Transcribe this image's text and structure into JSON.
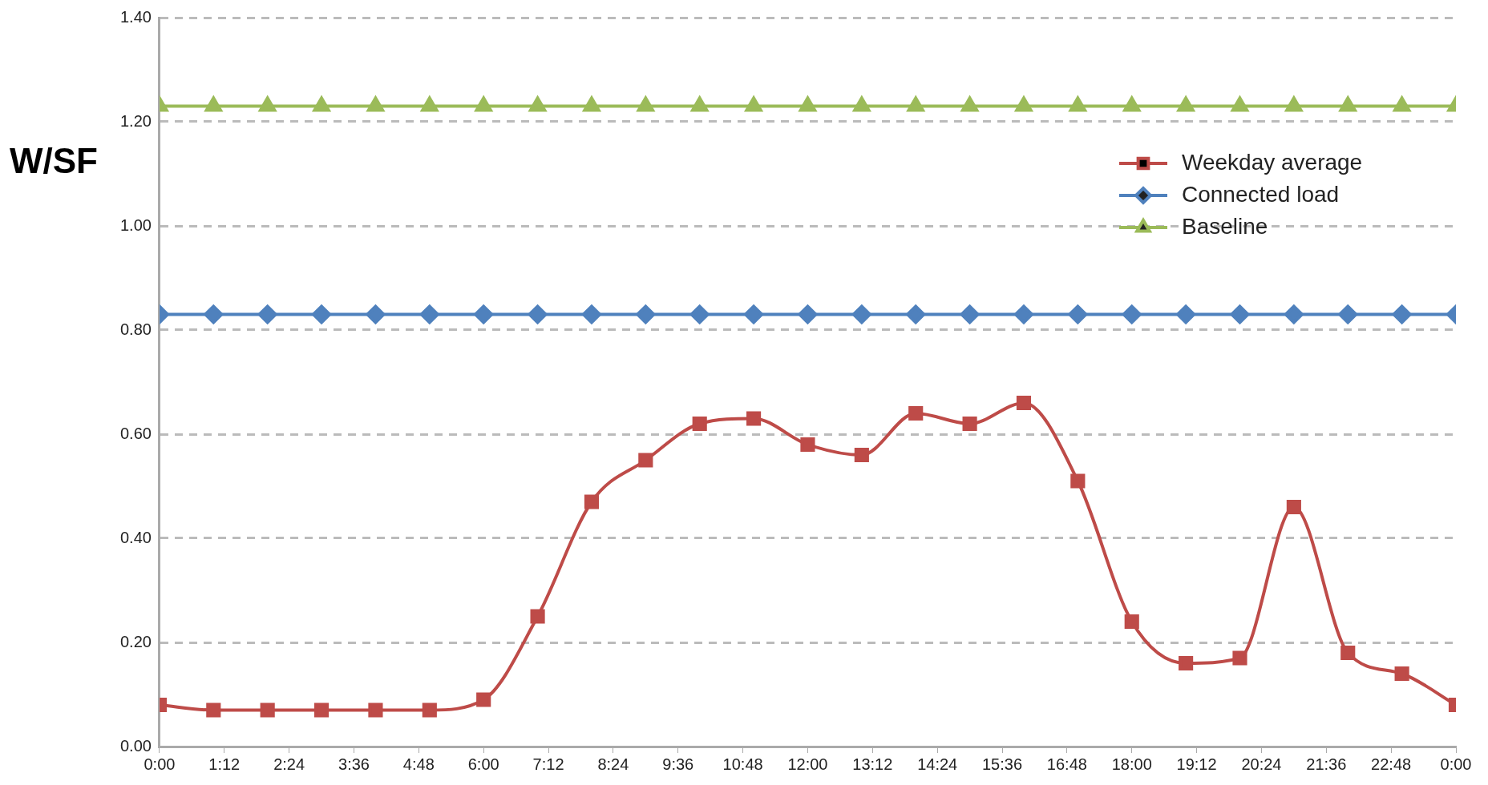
{
  "chart_data": {
    "type": "line",
    "ylabel": "W/SF",
    "x": [
      0,
      1,
      2,
      3,
      4,
      5,
      6,
      7,
      8,
      9,
      10,
      11,
      12,
      13,
      14,
      15,
      16,
      17,
      18,
      19,
      20,
      21,
      22,
      23,
      24
    ],
    "xlim": [
      0,
      24
    ],
    "xticks": [
      {
        "value": 0,
        "label": "0:00"
      },
      {
        "value": 1.2,
        "label": "1:12"
      },
      {
        "value": 2.4,
        "label": "2:24"
      },
      {
        "value": 3.6,
        "label": "3:36"
      },
      {
        "value": 4.8,
        "label": "4:48"
      },
      {
        "value": 6,
        "label": "6:00"
      },
      {
        "value": 7.2,
        "label": "7:12"
      },
      {
        "value": 8.4,
        "label": "8:24"
      },
      {
        "value": 9.6,
        "label": "9:36"
      },
      {
        "value": 10.8,
        "label": "10:48"
      },
      {
        "value": 12,
        "label": "12:00"
      },
      {
        "value": 13.2,
        "label": "13:12"
      },
      {
        "value": 14.4,
        "label": "14:24"
      },
      {
        "value": 15.6,
        "label": "15:36"
      },
      {
        "value": 16.8,
        "label": "16:48"
      },
      {
        "value": 18,
        "label": "18:00"
      },
      {
        "value": 19.2,
        "label": "19:12"
      },
      {
        "value": 20.4,
        "label": "20:24"
      },
      {
        "value": 21.6,
        "label": "21:36"
      },
      {
        "value": 22.8,
        "label": "22:48"
      },
      {
        "value": 24,
        "label": "0:00"
      }
    ],
    "series": [
      {
        "name": "Weekday average",
        "color": "#be4b48",
        "marker": "square",
        "values": [
          0.08,
          0.07,
          0.07,
          0.07,
          0.07,
          0.07,
          0.09,
          0.25,
          0.47,
          0.55,
          0.62,
          0.63,
          0.58,
          0.56,
          0.64,
          0.62,
          0.66,
          0.51,
          0.24,
          0.16,
          0.17,
          0.46,
          0.18,
          0.14,
          0.08
        ]
      },
      {
        "name": "Connected load",
        "color": "#4f81bd",
        "marker": "diamond",
        "values": [
          0.83,
          0.83,
          0.83,
          0.83,
          0.83,
          0.83,
          0.83,
          0.83,
          0.83,
          0.83,
          0.83,
          0.83,
          0.83,
          0.83,
          0.83,
          0.83,
          0.83,
          0.83,
          0.83,
          0.83,
          0.83,
          0.83,
          0.83,
          0.83,
          0.83
        ]
      },
      {
        "name": "Baseline",
        "color": "#9bbb59",
        "marker": "triangle",
        "values": [
          1.23,
          1.23,
          1.23,
          1.23,
          1.23,
          1.23,
          1.23,
          1.23,
          1.23,
          1.23,
          1.23,
          1.23,
          1.23,
          1.23,
          1.23,
          1.23,
          1.23,
          1.23,
          1.23,
          1.23,
          1.23,
          1.23,
          1.23,
          1.23,
          1.23
        ]
      }
    ],
    "ylim": [
      0,
      1.4
    ],
    "yticks": [
      {
        "value": 0,
        "label": "0.00"
      },
      {
        "value": 0.2,
        "label": "0.20"
      },
      {
        "value": 0.4,
        "label": "0.40"
      },
      {
        "value": 0.6,
        "label": "0.60"
      },
      {
        "value": 0.8,
        "label": "0.80"
      },
      {
        "value": 1.0,
        "label": "1.00"
      },
      {
        "value": 1.2,
        "label": "1.20"
      },
      {
        "value": 1.4,
        "label": "1.40"
      }
    ],
    "grid": "y",
    "legend": "top right",
    "line_style": "solid"
  }
}
